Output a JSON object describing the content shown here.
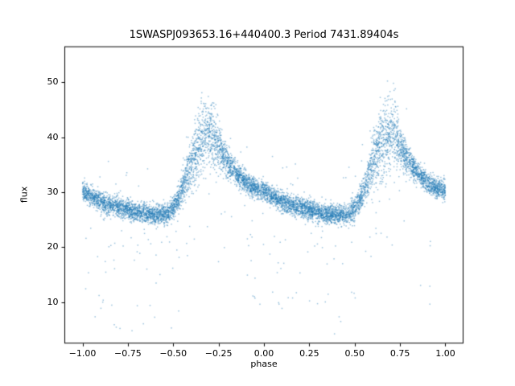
{
  "figure": {
    "title": "1SWASPJ093653.16+440400.3 Period 7431.89404s",
    "xlabel": "phase",
    "ylabel": "flux"
  },
  "chart_data": {
    "type": "scatter",
    "title": "1SWASPJ093653.16+440400.3 Period 7431.89404s",
    "xlabel": "phase",
    "ylabel": "flux",
    "xlim": [
      -1.1,
      1.1
    ],
    "ylim": [
      2.5,
      56.5
    ],
    "x_ticks": [
      -1.0,
      -0.75,
      -0.5,
      -0.25,
      0.0,
      0.25,
      0.5,
      0.75,
      1.0
    ],
    "x_tick_labels": [
      "−1.00",
      "−0.75",
      "−0.50",
      "−0.25",
      "0.00",
      "0.25",
      "0.50",
      "0.75",
      "1.00"
    ],
    "y_ticks": [
      10,
      20,
      30,
      40,
      50
    ],
    "y_tick_labels": [
      "10",
      "20",
      "30",
      "40",
      "50"
    ],
    "marker_color_rgba": "rgba(31,119,180,0.45)",
    "marker_color": "#1f77b4",
    "marker_size_px": 1.5,
    "n_points": 8000,
    "seed": 42,
    "x_range": [
      -1.0,
      1.0
    ],
    "trend": {
      "description": "Mean folded light curve; flux vs phase (phase in [0,1], curve repeats each unit of phase). Sharp rise to peak near phase 0.69 (x = -0.31 and x = 0.69), slow decline to minimum near phase 0.40.",
      "phase": [
        0.0,
        0.04,
        0.1,
        0.16,
        0.22,
        0.28,
        0.34,
        0.4,
        0.46,
        0.5,
        0.54,
        0.58,
        0.62,
        0.66,
        0.69,
        0.72,
        0.76,
        0.8,
        0.84,
        0.88,
        0.92,
        0.96,
        1.0
      ],
      "flux": [
        30.3,
        29.3,
        28.3,
        27.6,
        27.0,
        26.5,
        26.1,
        25.9,
        26.0,
        27.0,
        29.5,
        33.0,
        36.8,
        39.8,
        41.0,
        40.0,
        37.8,
        35.6,
        33.8,
        32.3,
        31.3,
        30.7,
        30.3
      ]
    },
    "noise": {
      "base_sigma": 0.9,
      "peak_sigma_extra": 2.4,
      "peak_phase": 0.67,
      "peak_width": 0.07,
      "outlier_low_fraction": 0.018,
      "outlier_low_drop_range": [
        3,
        22
      ],
      "outlier_high_fraction": 0.004,
      "outlier_high_rise_range": [
        3,
        9
      ]
    },
    "legend": null,
    "grid": false
  },
  "layout_note": "matplotlib-style single axes scatter plot"
}
